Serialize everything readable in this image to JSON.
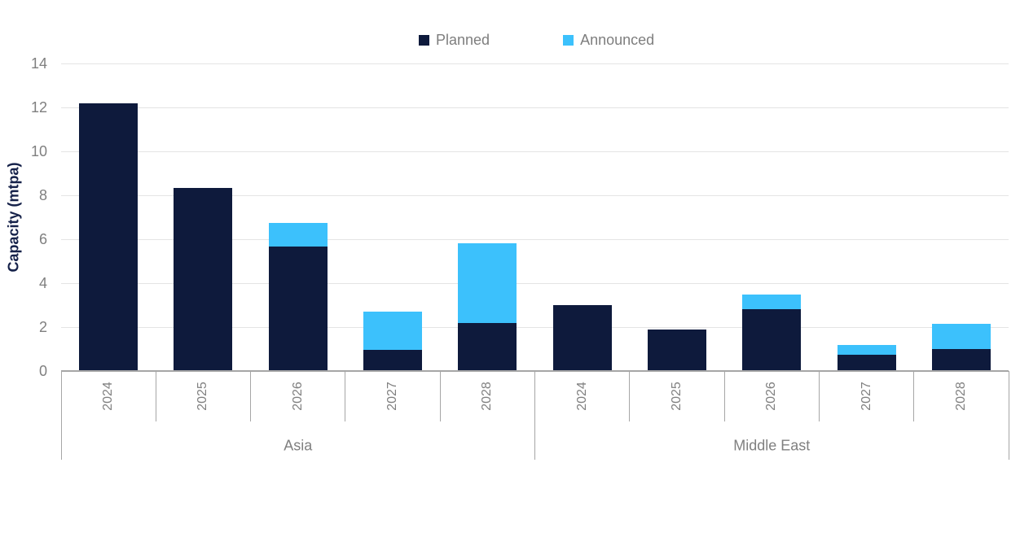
{
  "chart_data": {
    "type": "bar",
    "stacked": true,
    "title": "",
    "xlabel": "",
    "ylabel": "Capacity (mtpa)",
    "ylim": [
      0,
      14
    ],
    "yticks": [
      "0",
      "2",
      "4",
      "6",
      "8",
      "10",
      "12",
      "14"
    ],
    "grid": true,
    "legend_position": "top-center",
    "categories": [
      "2024",
      "2025",
      "2026",
      "2027",
      "2028",
      "2024",
      "2025",
      "2026",
      "2027",
      "2028"
    ],
    "groups": [
      {
        "label": "Asia",
        "start": 0,
        "end": 4
      },
      {
        "label": "Middle East",
        "start": 5,
        "end": 9
      }
    ],
    "series": [
      {
        "name": "Planned",
        "color": "#0e1a3c",
        "values": [
          12.2,
          8.35,
          5.65,
          0.95,
          2.2,
          3.0,
          1.9,
          2.8,
          0.75,
          1.0
        ]
      },
      {
        "name": "Announced",
        "color": "#3cc1fc",
        "values": [
          0,
          0,
          1.1,
          1.75,
          3.6,
          0,
          0,
          0.7,
          0.45,
          1.15
        ]
      }
    ]
  },
  "style": {
    "planned_color": "#0e1a3c",
    "announced_color": "#3cc1fc",
    "gridline_color": "#e4e4e4",
    "axis_line_color": "#a6a6a6",
    "tick_label_color": "#7f7f7f",
    "legend_text_color": "#7e7e7e",
    "y_title_color": "#16224a",
    "background": "#ffffff"
  }
}
